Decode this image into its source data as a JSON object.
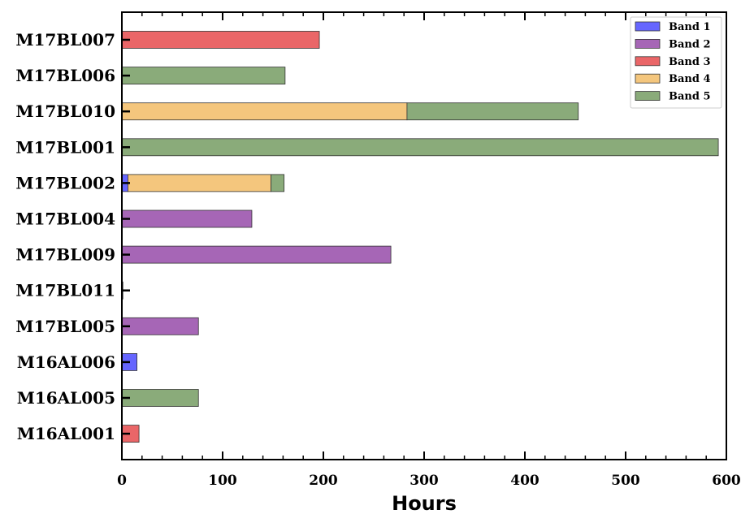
{
  "chart_data": {
    "type": "bar",
    "orientation": "horizontal",
    "stacked": true,
    "categories": [
      "M17BL007",
      "M17BL006",
      "M17BL010",
      "M17BL001",
      "M17BL002",
      "M17BL004",
      "M17BL009",
      "M17BL011",
      "M17BL005",
      "M16AL006",
      "M16AL005",
      "M16AL001"
    ],
    "series": [
      {
        "name": "Band 1",
        "color": "#6666ff",
        "values": [
          0,
          0,
          0,
          0,
          6,
          0,
          0,
          0,
          0,
          15,
          0,
          0
        ]
      },
      {
        "name": "Band 2",
        "color": "#a666b6",
        "values": [
          0,
          0,
          0,
          0,
          0,
          129,
          267,
          1,
          76,
          0,
          0,
          0
        ]
      },
      {
        "name": "Band 3",
        "color": "#ea6668",
        "values": [
          196,
          0,
          0,
          0,
          0,
          0,
          0,
          0,
          0,
          0,
          0,
          17
        ]
      },
      {
        "name": "Band 4",
        "color": "#f4c67d",
        "values": [
          0,
          0,
          283,
          0,
          142,
          0,
          0,
          0,
          0,
          0,
          0,
          0
        ]
      },
      {
        "name": "Band 5",
        "color": "#8aab7a",
        "values": [
          0,
          162,
          170,
          592,
          13,
          0,
          0,
          0,
          0,
          0,
          76,
          0
        ]
      }
    ],
    "xlabel": "Hours",
    "ylabel": "",
    "xlim": [
      0,
      600
    ],
    "xticks": [
      0,
      100,
      200,
      300,
      400,
      500,
      600
    ],
    "grid": false,
    "legend": "top-right"
  }
}
